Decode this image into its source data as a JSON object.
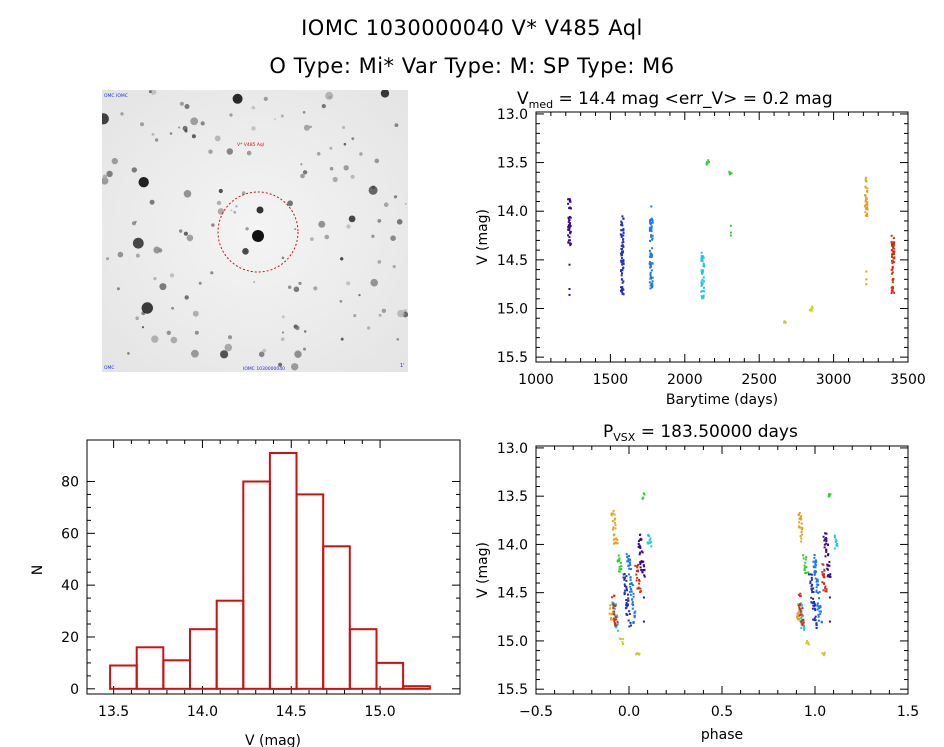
{
  "header": {
    "title": "IOMC 1030000040    V* V485 Aql",
    "subtitle": "O Type: Mi*   Var Type: M:   SP Type: M6"
  },
  "thumbnail": {
    "label_top_left": "OMC IOMC",
    "label_target": "V* V485 Aql",
    "label_bottom": "IOMC 1030000040",
    "label_bottom_left": "OMC",
    "label_bottom_right": "1'"
  },
  "colors": {
    "hist": "#cc1111",
    "circle": "#d01010",
    "phase_colors": [
      "#3a0a8a",
      "#2030c0",
      "#1e78e8",
      "#20c8d8",
      "#30d030",
      "#c8d020",
      "#e8a020",
      "#d03010"
    ]
  },
  "chart_data": [
    {
      "id": "light_curve",
      "type": "scatter",
      "title_prefix": "V",
      "title_sub": "med",
      "title_rest": " = 14.4 mag <err_V> = 0.2 mag",
      "xlabel": "Barytime (days)",
      "ylabel": "V (mag)",
      "xlim": [
        1000,
        3500
      ],
      "ylim": [
        15.55,
        12.98
      ],
      "y_inverted": true,
      "xticks": [
        "1000",
        "1500",
        "2000",
        "2500",
        "3000",
        "3500"
      ],
      "yticks": [
        "13.0",
        "13.5",
        "14.0",
        "14.5",
        "15.0",
        "15.5"
      ],
      "groups": [
        {
          "x": 1225,
          "ymin": 13.87,
          "ymax": 14.35,
          "color_index": 0,
          "extra": [
            14.55,
            14.8,
            14.86
          ]
        },
        {
          "x": 1580,
          "ymin": 14.05,
          "ymax": 14.88,
          "color_index": 1,
          "extra": []
        },
        {
          "x": 1775,
          "ymin": 14.06,
          "ymax": 14.82,
          "color_index": 2,
          "extra": [
            13.95
          ]
        },
        {
          "x": 2120,
          "ymin": 14.42,
          "ymax": 14.9,
          "color_index": 3,
          "extra": []
        },
        {
          "x": 2155,
          "ymin": 13.47,
          "ymax": 13.53,
          "color_index": 4,
          "extra": []
        },
        {
          "x": 2310,
          "ymin": 13.57,
          "ymax": 13.62,
          "color_index": 4,
          "extra": [
            14.15,
            14.22,
            14.25
          ]
        },
        {
          "x": 2670,
          "ymin": 15.12,
          "ymax": 15.15,
          "color_index": 5,
          "extra": []
        },
        {
          "x": 2850,
          "ymin": 14.97,
          "ymax": 15.04,
          "color_index": 5,
          "extra": []
        },
        {
          "x": 3220,
          "ymin": 13.65,
          "ymax": 14.05,
          "color_index": 6,
          "extra": [
            14.62,
            14.7,
            14.75
          ]
        },
        {
          "x": 3400,
          "ymin": 14.25,
          "ymax": 14.85,
          "color_index": 7,
          "extra": []
        }
      ]
    },
    {
      "id": "histogram",
      "type": "bar",
      "xlabel": "V (mag)",
      "ylabel": "N",
      "xlim": [
        13.35,
        15.45
      ],
      "ylim": [
        -2,
        96
      ],
      "xticks": [
        "13.5",
        "14.0",
        "14.5",
        "15.0"
      ],
      "yticks": [
        "0",
        "20",
        "40",
        "60",
        "80"
      ],
      "bin_width": 0.15,
      "bin_starts": [
        13.48,
        13.63,
        13.78,
        13.93,
        14.08,
        14.23,
        14.38,
        14.53,
        14.68,
        14.83,
        14.98,
        15.13
      ],
      "values": [
        9,
        16,
        11,
        23,
        34,
        80,
        91,
        75,
        55,
        23,
        10,
        1
      ]
    },
    {
      "id": "phased_curve",
      "type": "scatter",
      "title_prefix": "P",
      "title_sub": "VSX",
      "title_rest": " = 183.50000 days",
      "xlabel": "phase",
      "ylabel": "V (mag)",
      "xlim": [
        -0.5,
        1.5
      ],
      "ylim": [
        15.55,
        12.98
      ],
      "y_inverted": true,
      "xticks": [
        "−0.5",
        "0.0",
        "0.5",
        "1.0",
        "1.5"
      ],
      "yticks": [
        "13.0",
        "13.5",
        "14.0",
        "14.5",
        "15.0",
        "15.5"
      ],
      "groups": [
        {
          "x": 0.08,
          "ymin": 13.87,
          "ymax": 14.35,
          "color_index": 0,
          "extra": [
            14.55,
            14.8
          ]
        },
        {
          "x": -0.02,
          "ymin": 14.3,
          "ymax": 14.88,
          "color_index": 1,
          "extra": []
        },
        {
          "x": 0.01,
          "ymin": 14.1,
          "ymax": 14.82,
          "color_index": 2,
          "extra": []
        },
        {
          "x": 0.13,
          "ymin": 13.9,
          "ymax": 14.05,
          "color_index": 3,
          "extra": []
        },
        {
          "x": -0.09,
          "ymin": 14.6,
          "ymax": 14.9,
          "color_index": 3,
          "extra": []
        },
        {
          "x": 0.12,
          "ymin": 13.47,
          "ymax": 13.53,
          "color_index": 4,
          "extra": []
        },
        {
          "x": -0.04,
          "ymin": 14.1,
          "ymax": 14.3,
          "color_index": 4,
          "extra": []
        },
        {
          "x": -0.07,
          "ymin": 14.97,
          "ymax": 15.04,
          "color_index": 5,
          "extra": []
        },
        {
          "x": 0.01,
          "ymin": 15.12,
          "ymax": 15.15,
          "color_index": 5,
          "extra": []
        },
        {
          "x": -0.05,
          "ymin": 13.65,
          "ymax": 14.0,
          "color_index": 6,
          "extra": []
        },
        {
          "x": -0.11,
          "ymin": 14.62,
          "ymax": 14.78,
          "color_index": 6,
          "extra": []
        },
        {
          "x": -0.09,
          "ymin": 14.5,
          "ymax": 14.85,
          "color_index": 7,
          "extra": []
        },
        {
          "x": 0.05,
          "ymin": 14.2,
          "ymax": 14.5,
          "color_index": 7,
          "extra": []
        }
      ]
    }
  ]
}
